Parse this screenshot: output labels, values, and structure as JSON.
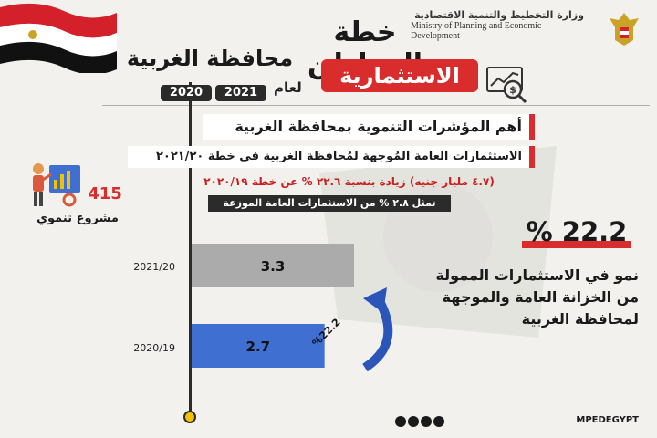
{
  "header": {
    "ministry_ar": "وزارة التخطيط والتنمية الاقتصادية",
    "ministry_en_line1": "Ministry of Planning and Economic",
    "ministry_en_line2": "Development",
    "title_line1": "خطة المواطن",
    "title_line2": "الاستثمارية",
    "title_line3": "محافظة الغربية",
    "for_year": "لعام",
    "year_1": "2021",
    "year_2": "2020"
  },
  "section": {
    "title": "أهم المؤشرات التنموية بمحافظة الغربية",
    "subtitle": "الاستثمارات العامة المُوجهة لمُحافظة الغربية في خطة ٢٠٢١/٢٠",
    "red_line": "(٤.٧ مليار جنيه) زيادة بنسبة ٢٢.٦ % عن خطة ٢٠٢٠/١٩",
    "black_line": "تمثل ٢.٨ % من الاستثمارات العامة الموزعة"
  },
  "projects": {
    "count": "415",
    "label": "مشروع تنموي"
  },
  "chart_data": {
    "type": "bar",
    "categories": [
      "2021/20",
      "2020/19"
    ],
    "values": [
      3.3,
      2.7
    ],
    "value_labels": [
      "3.3",
      "2.7"
    ],
    "colors": [
      "#ababab",
      "#3f6fd1"
    ],
    "arrow_label": "%22.2",
    "xlim": [
      0,
      3.3
    ]
  },
  "growth": {
    "percent": "% 22.2",
    "line1": "نمو في الاستثمارات الممولة",
    "line2": "من الخزانة العامة والموجهة",
    "line3": "لمحافظة الغربية"
  },
  "footer": {
    "handle": "MPEDEGYPT"
  },
  "colors": {
    "accent_red": "#d92d2d",
    "bar_gray": "#ababab",
    "bar_blue": "#3f6fd1",
    "background": "#f3f1ee"
  }
}
